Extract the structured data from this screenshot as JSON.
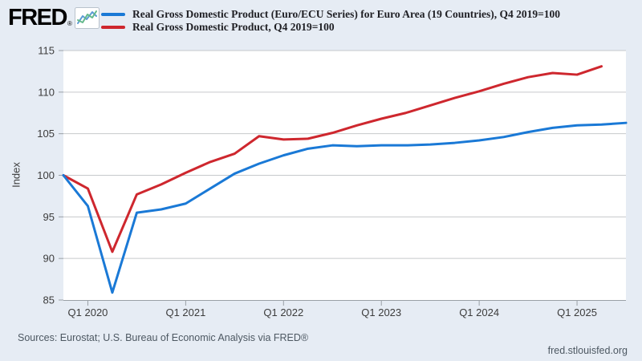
{
  "header": {
    "logo_text": "FRED",
    "logo_registered": "®"
  },
  "legend": [
    {
      "label": "Real Gross Domestic Product (Euro/ECU Series) for Euro Area (19 Countries), Q4 2019=100"
    },
    {
      "label": "Real Gross Domestic Product, Q4 2019=100"
    }
  ],
  "chart_data": {
    "type": "line",
    "title": "",
    "xlabel": "",
    "ylabel": "Index",
    "ylim": [
      85,
      115
    ],
    "ytick_step": 5,
    "grid": "horizontal",
    "legend_position": "top-left",
    "plot_background": "#ffffff",
    "page_background": "#e6ecf4",
    "gridline_color": "#c6c9cc",
    "axis_color": "#9aa0a6",
    "tick_label_color": "#3c3c3c",
    "x": [
      "Q4 2019",
      "Q1 2020",
      "Q2 2020",
      "Q3 2020",
      "Q4 2020",
      "Q1 2021",
      "Q2 2021",
      "Q3 2021",
      "Q4 2021",
      "Q1 2022",
      "Q2 2022",
      "Q3 2022",
      "Q4 2022",
      "Q1 2023",
      "Q2 2023",
      "Q3 2023",
      "Q4 2023",
      "Q1 2024",
      "Q2 2024",
      "Q3 2024",
      "Q4 2024",
      "Q1 2025",
      "Q2 2025",
      "Q3 2025"
    ],
    "xtick_labels": [
      "Q1 2020",
      "Q1 2021",
      "Q1 2022",
      "Q1 2023",
      "Q1 2024",
      "Q1 2025"
    ],
    "series": [
      {
        "name": "euro-area-gdp",
        "label": "Real Gross Domestic Product (Euro/ECU Series) for Euro Area (19 Countries), Q4 2019=100",
        "color": "#1a79d6",
        "values": [
          100,
          96.3,
          85.9,
          95.5,
          95.9,
          96.6,
          98.4,
          100.2,
          101.4,
          102.4,
          103.2,
          103.6,
          103.5,
          103.6,
          103.6,
          103.7,
          103.9,
          104.2,
          104.6,
          105.2,
          105.7,
          106.0,
          106.1,
          106.3
        ]
      },
      {
        "name": "us-gdp",
        "label": "Real Gross Domestic Product, Q4 2019=100",
        "color": "#ce272e",
        "values": [
          100,
          98.4,
          90.8,
          97.7,
          98.9,
          100.3,
          101.6,
          102.6,
          104.7,
          104.3,
          104.4,
          105.1,
          106.0,
          106.8,
          107.5,
          108.4,
          109.3,
          110.1,
          111.0,
          111.8,
          112.3,
          112.1,
          113.1,
          null
        ]
      }
    ]
  },
  "footer": {
    "sources": "Sources: Eurostat; U.S. Bureau of Economic Analysis via FRED®",
    "site": "fred.stlouisfed.org"
  }
}
